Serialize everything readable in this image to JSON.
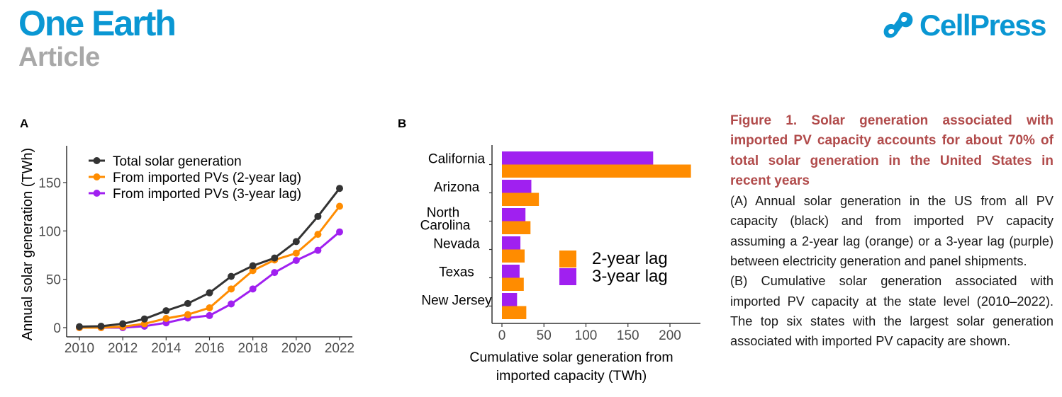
{
  "header": {
    "journal": "One Earth",
    "article_type": "Article",
    "publisher": "CellPress",
    "publisher_logo_icon": "cellpress-logo-icon"
  },
  "colors": {
    "journal_blue": "#0a97d3",
    "article_gray": "#a8a8a8",
    "caption_title": "#b14b4b",
    "total": "#333333",
    "lag2": "#ff8c00",
    "lag3": "#a020f0"
  },
  "panels": {
    "a_label": "A",
    "b_label": "B"
  },
  "chart_data": [
    {
      "type": "line",
      "panel": "A",
      "title": "",
      "xlabel": "",
      "ylabel": "Annual solar generation (TWh)",
      "x": [
        2010,
        2011,
        2012,
        2013,
        2014,
        2015,
        2016,
        2017,
        2018,
        2019,
        2020,
        2021,
        2022
      ],
      "xticks": [
        "2010",
        "2012",
        "2014",
        "2016",
        "2018",
        "2020",
        "2022"
      ],
      "yticks": [
        "0",
        "50",
        "100",
        "150"
      ],
      "xlim": [
        2010,
        2022
      ],
      "ylim": [
        0,
        185
      ],
      "grid": false,
      "legend_position": "top-left",
      "series": [
        {
          "name": "Total solar generation",
          "color": "#333333",
          "values": [
            1,
            1.5,
            4,
            9,
            17.5,
            25,
            36,
            53,
            64,
            72,
            89,
            115,
            144
          ]
        },
        {
          "name": "From imported PVs (2-year lag)",
          "color": "#ff8c00",
          "values": [
            0,
            0,
            1,
            4,
            9.5,
            13.5,
            20.5,
            40,
            59,
            70,
            77,
            96.5,
            125.5
          ]
        },
        {
          "name": "From imported PVs (3-year lag)",
          "color": "#a020f0",
          "values": [
            0,
            0,
            0,
            1.5,
            5,
            10,
            12.5,
            24.5,
            40,
            57,
            69.5,
            80,
            99
          ]
        }
      ]
    },
    {
      "type": "bar",
      "orientation": "horizontal",
      "panel": "B",
      "title": "",
      "xlabel": "Cumulative solar generation from imported capacity (TWh)",
      "xlabel_lines": [
        "Cumulative solar generation from",
        "imported capacity (TWh)"
      ],
      "ylabel": "",
      "categories": [
        "California",
        "Arizona",
        "North Carolina",
        "Nevada",
        "Texas",
        "New Jersey"
      ],
      "category_lines": [
        [
          "California"
        ],
        [
          "Arizona"
        ],
        [
          "North",
          "Carolina"
        ],
        [
          "Nevada"
        ],
        [
          "Texas"
        ],
        [
          "New Jersey"
        ]
      ],
      "xticks": [
        "0",
        "50",
        "100",
        "150",
        "200"
      ],
      "xlim": [
        -10,
        235
      ],
      "grid": false,
      "legend_position": "center-right",
      "series": [
        {
          "name": "2-year lag",
          "color": "#ff8c00",
          "values": [
            225,
            44,
            34,
            27,
            26,
            29
          ]
        },
        {
          "name": "3-year lag",
          "color": "#a020f0",
          "values": [
            180,
            35,
            28,
            22,
            21,
            18
          ]
        }
      ]
    }
  ],
  "caption": {
    "title": "Figure 1. Solar generation associated with imported PV capacity accounts for about 70% of total solar generation in the United States in recent years",
    "para_a": "(A) Annual solar generation in the US from all PV capacity (black) and from imported PV capacity assuming a 2-year lag (orange) or a 3-year lag (purple) between electricity generation and panel shipments.",
    "para_b": "(B) Cumulative solar generation associated with imported PV capacity at the state level (2010–2022). The top six states with the largest solar generation associated with imported PV capacity are shown."
  }
}
